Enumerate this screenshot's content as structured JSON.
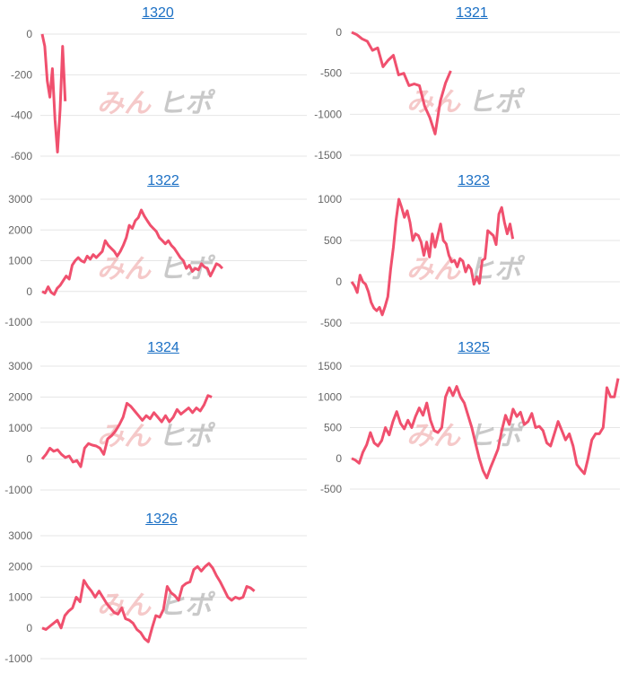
{
  "colors": {
    "line": "#f0506e",
    "title_link": "#1a6fc4",
    "grid": "#e6e6e6",
    "tick_text": "#666666"
  },
  "watermark": {
    "part1": "みん",
    "part2": "ヒポ"
  },
  "chart_data": [
    {
      "type": "line",
      "title": "1320",
      "ylim": [
        -600,
        0
      ],
      "yticks": [
        0,
        -200,
        -400,
        -600
      ],
      "values": [
        0,
        -60,
        -230,
        -310,
        -170,
        -420,
        -580,
        -370,
        -60,
        -330
      ]
    },
    {
      "type": "line",
      "title": "1321",
      "ylim": [
        -1500,
        0
      ],
      "yticks": [
        0,
        -500,
        -1000,
        -1500
      ],
      "values": [
        0,
        -30,
        -80,
        -110,
        -220,
        -190,
        -420,
        -340,
        -280,
        -520,
        -500,
        -650,
        -630,
        -650,
        -900,
        -1040,
        -1240,
        -840,
        -620,
        -470
      ]
    },
    {
      "type": "line",
      "title": "1322",
      "ylim": [
        -1000,
        3000
      ],
      "yticks": [
        3000,
        2000,
        1000,
        0,
        -1000
      ],
      "values": [
        0,
        -50,
        150,
        -30,
        -100,
        100,
        200,
        350,
        500,
        400,
        850,
        1000,
        1100,
        1000,
        950,
        1150,
        1050,
        1200,
        1100,
        1200,
        1300,
        1650,
        1500,
        1400,
        1300,
        1150,
        1300,
        1500,
        1750,
        2150,
        2050,
        2300,
        2400,
        2650,
        2450,
        2300,
        2150,
        2050,
        1950,
        1750,
        1650,
        1550,
        1650,
        1500,
        1400,
        1250,
        1100,
        1000,
        750,
        850,
        650,
        750,
        700,
        900,
        800,
        750,
        500,
        700,
        900,
        850,
        750
      ]
    },
    {
      "type": "line",
      "title": "1323",
      "ylim": [
        -500,
        1000
      ],
      "yticks": [
        1000,
        500,
        0,
        -500
      ],
      "values": [
        0,
        -50,
        -130,
        80,
        0,
        -30,
        -120,
        -250,
        -320,
        -350,
        -310,
        -400,
        -300,
        -180,
        150,
        420,
        750,
        1000,
        900,
        780,
        860,
        720,
        500,
        580,
        560,
        480,
        320,
        480,
        300,
        580,
        420,
        560,
        700,
        500,
        460,
        320,
        240,
        260,
        180,
        280,
        250,
        120,
        200,
        150,
        -30,
        60,
        -20,
        260,
        280,
        620,
        590,
        560,
        450,
        820,
        900,
        720,
        580,
        700,
        520
      ]
    },
    {
      "type": "line",
      "title": "1324",
      "ylim": [
        -1000,
        3000
      ],
      "yticks": [
        3000,
        2000,
        1000,
        0,
        -1000
      ],
      "values": [
        0,
        150,
        350,
        250,
        300,
        150,
        50,
        100,
        -100,
        -50,
        -250,
        350,
        500,
        450,
        420,
        350,
        150,
        650,
        750,
        900,
        1100,
        1350,
        1800,
        1700,
        1550,
        1400,
        1250,
        1400,
        1300,
        1500,
        1350,
        1200,
        1400,
        1200,
        1350,
        1600,
        1450,
        1550,
        1650,
        1500,
        1650,
        1550,
        1750,
        2050,
        2000
      ]
    },
    {
      "type": "line",
      "title": "1325",
      "ylim": [
        -500,
        1500
      ],
      "yticks": [
        1500,
        1000,
        500,
        0,
        -500
      ],
      "values": [
        0,
        -30,
        -80,
        100,
        220,
        420,
        250,
        200,
        290,
        500,
        380,
        600,
        760,
        570,
        480,
        620,
        500,
        680,
        820,
        700,
        900,
        620,
        450,
        420,
        500,
        1000,
        1150,
        1020,
        1170,
        1000,
        900,
        700,
        500,
        250,
        0,
        -200,
        -320,
        -150,
        0,
        150,
        450,
        700,
        550,
        800,
        680,
        750,
        550,
        600,
        730,
        500,
        520,
        450,
        250,
        200,
        400,
        600,
        450,
        300,
        400,
        200,
        -100,
        -180,
        -250,
        0,
        300,
        400,
        400,
        500,
        1150,
        1000,
        1000,
        1300
      ]
    },
    {
      "type": "line",
      "title": "1326",
      "ylim": [
        -1000,
        3000
      ],
      "yticks": [
        3000,
        2000,
        1000,
        0,
        -1000
      ],
      "values": [
        0,
        -50,
        50,
        150,
        250,
        0,
        400,
        550,
        650,
        1000,
        850,
        1550,
        1350,
        1200,
        1000,
        1200,
        1000,
        800,
        650,
        500,
        450,
        650,
        300,
        250,
        150,
        -50,
        -150,
        -350,
        -450,
        0,
        400,
        350,
        600,
        1350,
        1150,
        1050,
        900,
        1350,
        1450,
        1500,
        1900,
        2000,
        1850,
        2000,
        2100,
        1950,
        1700,
        1500,
        1250,
        1000,
        900,
        1000,
        950,
        1000,
        1350,
        1300,
        1200
      ]
    }
  ]
}
